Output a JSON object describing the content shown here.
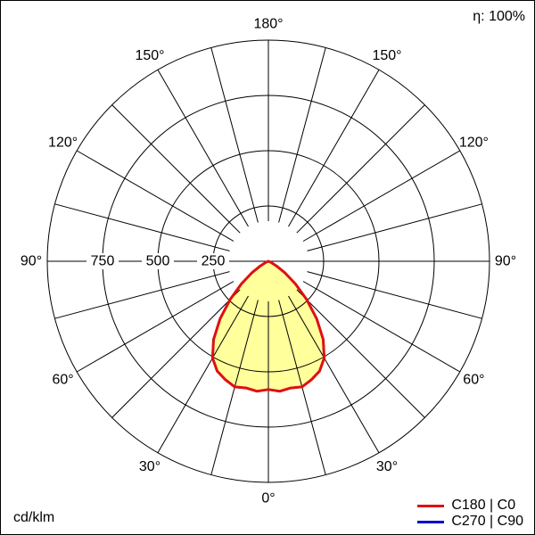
{
  "chart_data": {
    "type": "polar",
    "unit": "cd/klm",
    "efficiency": "η: 100%",
    "r_max": 1000,
    "radial_ticks": [
      250,
      500,
      750
    ],
    "grid_step_deg": 15,
    "angle_labels": [
      {
        "gamma": 180,
        "side": 0,
        "text": "180°"
      },
      {
        "gamma": 150,
        "side": -1,
        "text": "150°"
      },
      {
        "gamma": 150,
        "side": 1,
        "text": "150°"
      },
      {
        "gamma": 120,
        "side": -1,
        "text": "120°"
      },
      {
        "gamma": 120,
        "side": 1,
        "text": "120°"
      },
      {
        "gamma": 90,
        "side": -1,
        "text": "90°"
      },
      {
        "gamma": 90,
        "side": 1,
        "text": "90°"
      },
      {
        "gamma": 60,
        "side": -1,
        "text": "60°"
      },
      {
        "gamma": 60,
        "side": 1,
        "text": "60°"
      },
      {
        "gamma": 30,
        "side": -1,
        "text": "30°"
      },
      {
        "gamma": 30,
        "side": 1,
        "text": "30°"
      },
      {
        "gamma": 0,
        "side": 0,
        "text": "0°"
      }
    ],
    "series": [
      {
        "name": "C180 | C0",
        "color": "#e01010",
        "fill": "#ffff9c",
        "gamma": [
          0,
          5,
          10,
          15,
          20,
          25,
          30,
          35,
          40,
          45,
          50,
          55,
          60,
          65,
          70,
          75,
          80,
          85,
          90
        ],
        "values": [
          580,
          590,
          582,
          588,
          570,
          548,
          505,
          432,
          340,
          245,
          160,
          92,
          42,
          16,
          4,
          0,
          0,
          0,
          0
        ]
      },
      {
        "name": "C270 | C90",
        "color": "#0000cd",
        "fill": null,
        "gamma": [
          0,
          5,
          10,
          15,
          20,
          25,
          30,
          35,
          40,
          45,
          50,
          55,
          60,
          65,
          70,
          75,
          80,
          85,
          90
        ],
        "values": [
          580,
          590,
          582,
          588,
          570,
          548,
          505,
          432,
          340,
          245,
          160,
          92,
          42,
          16,
          4,
          0,
          0,
          0,
          0
        ]
      }
    ]
  }
}
